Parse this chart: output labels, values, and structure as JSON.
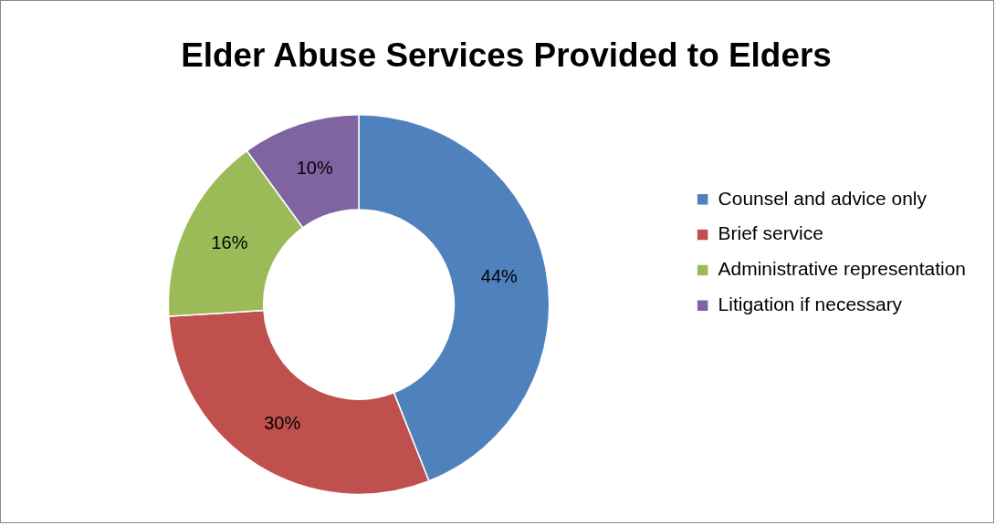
{
  "chart_data": {
    "type": "donut",
    "title": "Elder Abuse Services Provided to Elders",
    "categories": [
      "Counsel and advice only",
      "Brief service",
      "Administrative representation",
      "Litigation if necessary"
    ],
    "values": [
      44,
      30,
      16,
      10
    ],
    "value_labels": [
      "44%",
      "30%",
      "16%",
      "10%"
    ],
    "colors": [
      "#4f81bd",
      "#c0504d",
      "#9bbb59",
      "#8064a2"
    ],
    "legend": "right"
  }
}
